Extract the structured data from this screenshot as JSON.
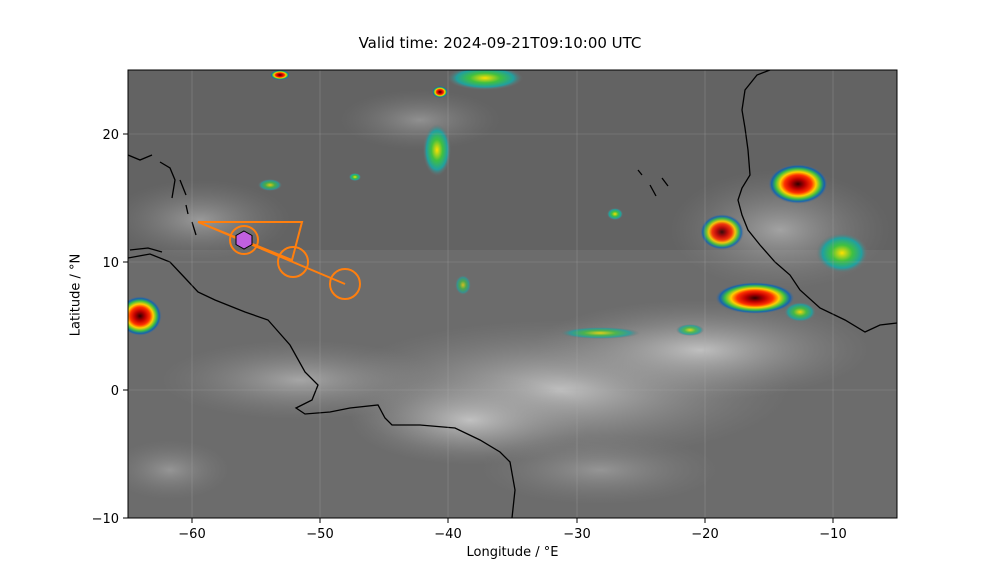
{
  "title": "Valid time: 2024-09-21T09:10:00 UTC",
  "xlabel": "Longitude / °E",
  "ylabel": "Latitude / °N",
  "x_ticks": [
    "−60",
    "−50",
    "−40",
    "−30",
    "−20",
    "−10"
  ],
  "y_ticks": [
    "20",
    "10",
    "0",
    "−10"
  ],
  "map": {
    "lon_range": [
      -65,
      -5
    ],
    "lat_range": [
      -10,
      25
    ],
    "grid": true,
    "background": "satellite infrared imagery (grayscale with colour-enhanced cold cloud tops)"
  },
  "track": {
    "color": "#ff7f0e",
    "current_marker": {
      "lon": -56,
      "lat": 11.8,
      "shape": "hexagon",
      "color": "#c060e0"
    },
    "circles": [
      {
        "lon": -56,
        "lat": 11.8
      },
      {
        "lon": -52.2,
        "lat": 10.0
      },
      {
        "lon": -48.2,
        "lat": 8.2
      }
    ]
  }
}
